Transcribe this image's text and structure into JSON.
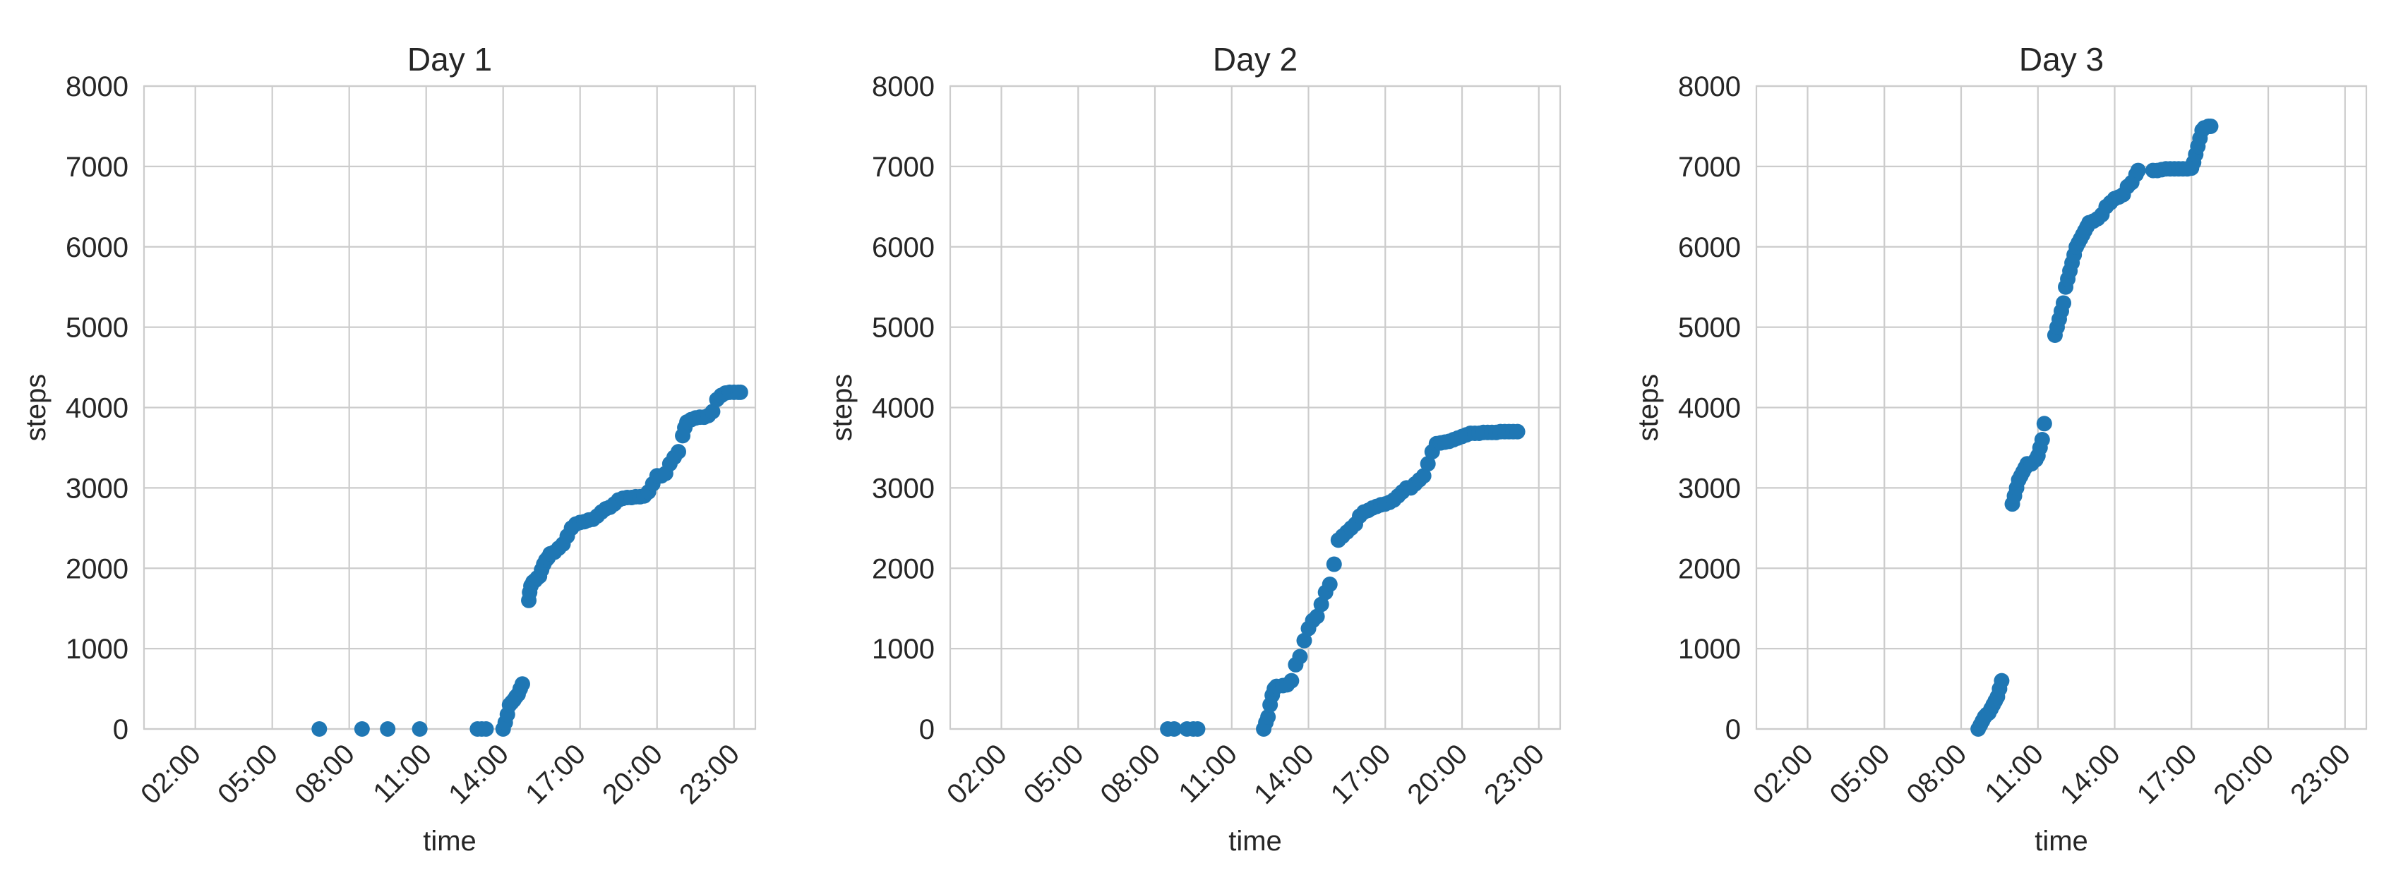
{
  "chart_data": [
    {
      "type": "scatter",
      "title": "Day 1",
      "xlabel": "time",
      "ylabel": "steps",
      "xlim": [
        "00:00",
        "23:50"
      ],
      "ylim": [
        0,
        8000
      ],
      "xticks": [
        "02:00",
        "05:00",
        "08:00",
        "11:00",
        "14:00",
        "17:00",
        "20:00",
        "23:00"
      ],
      "yticks": [
        0,
        1000,
        2000,
        3000,
        4000,
        5000,
        6000,
        7000,
        8000
      ],
      "grid": true,
      "color": "#1f77b4",
      "points": [
        [
          "06:50",
          0
        ],
        [
          "08:30",
          0
        ],
        [
          "09:30",
          0
        ],
        [
          "10:45",
          0
        ],
        [
          "13:00",
          0
        ],
        [
          "13:10",
          0
        ],
        [
          "13:20",
          0
        ],
        [
          "14:00",
          0
        ],
        [
          "14:05",
          80
        ],
        [
          "14:10",
          180
        ],
        [
          "14:15",
          300
        ],
        [
          "14:20",
          330
        ],
        [
          "14:25",
          360
        ],
        [
          "14:30",
          400
        ],
        [
          "14:35",
          430
        ],
        [
          "14:40",
          500
        ],
        [
          "14:45",
          560
        ],
        [
          "15:00",
          1600
        ],
        [
          "15:02",
          1700
        ],
        [
          "15:05",
          1780
        ],
        [
          "15:10",
          1830
        ],
        [
          "15:15",
          1850
        ],
        [
          "15:20",
          1880
        ],
        [
          "15:25",
          1900
        ],
        [
          "15:30",
          1980
        ],
        [
          "15:35",
          2050
        ],
        [
          "15:40",
          2100
        ],
        [
          "15:45",
          2130
        ],
        [
          "15:50",
          2180
        ],
        [
          "16:00",
          2200
        ],
        [
          "16:10",
          2250
        ],
        [
          "16:20",
          2300
        ],
        [
          "16:30",
          2400
        ],
        [
          "16:40",
          2500
        ],
        [
          "16:50",
          2550
        ],
        [
          "17:00",
          2570
        ],
        [
          "17:10",
          2580
        ],
        [
          "17:20",
          2600
        ],
        [
          "17:30",
          2610
        ],
        [
          "17:40",
          2650
        ],
        [
          "17:50",
          2700
        ],
        [
          "18:00",
          2740
        ],
        [
          "18:10",
          2760
        ],
        [
          "18:20",
          2800
        ],
        [
          "18:30",
          2850
        ],
        [
          "18:40",
          2870
        ],
        [
          "18:50",
          2880
        ],
        [
          "19:00",
          2880
        ],
        [
          "19:10",
          2890
        ],
        [
          "19:20",
          2890
        ],
        [
          "19:30",
          2900
        ],
        [
          "19:40",
          2950
        ],
        [
          "19:50",
          3050
        ],
        [
          "20:00",
          3150
        ],
        [
          "20:10",
          3150
        ],
        [
          "20:20",
          3180
        ],
        [
          "20:30",
          3300
        ],
        [
          "20:40",
          3380
        ],
        [
          "20:50",
          3450
        ],
        [
          "21:00",
          3650
        ],
        [
          "21:05",
          3750
        ],
        [
          "21:10",
          3820
        ],
        [
          "21:20",
          3850
        ],
        [
          "21:30",
          3870
        ],
        [
          "21:40",
          3880
        ],
        [
          "21:50",
          3880
        ],
        [
          "22:00",
          3900
        ],
        [
          "22:10",
          3950
        ],
        [
          "22:20",
          4100
        ],
        [
          "22:30",
          4150
        ],
        [
          "22:40",
          4180
        ],
        [
          "22:50",
          4190
        ],
        [
          "23:00",
          4190
        ],
        [
          "23:10",
          4190
        ],
        [
          "23:15",
          4190
        ]
      ]
    },
    {
      "type": "scatter",
      "title": "Day 2",
      "xlabel": "time",
      "ylabel": "steps",
      "xlim": [
        "00:00",
        "23:50"
      ],
      "ylim": [
        0,
        8000
      ],
      "xticks": [
        "02:00",
        "05:00",
        "08:00",
        "11:00",
        "14:00",
        "17:00",
        "20:00",
        "23:00"
      ],
      "yticks": [
        0,
        1000,
        2000,
        3000,
        4000,
        5000,
        6000,
        7000,
        8000
      ],
      "grid": true,
      "color": "#1f77b4",
      "points": [
        [
          "08:30",
          0
        ],
        [
          "08:45",
          0
        ],
        [
          "09:15",
          0
        ],
        [
          "09:30",
          0
        ],
        [
          "09:40",
          0
        ],
        [
          "12:15",
          0
        ],
        [
          "12:20",
          80
        ],
        [
          "12:25",
          150
        ],
        [
          "12:30",
          300
        ],
        [
          "12:35",
          420
        ],
        [
          "12:40",
          500
        ],
        [
          "12:45",
          530
        ],
        [
          "13:00",
          540
        ],
        [
          "13:10",
          550
        ],
        [
          "13:20",
          600
        ],
        [
          "13:30",
          800
        ],
        [
          "13:40",
          900
        ],
        [
          "13:50",
          1100
        ],
        [
          "14:00",
          1250
        ],
        [
          "14:10",
          1350
        ],
        [
          "14:20",
          1400
        ],
        [
          "14:30",
          1550
        ],
        [
          "14:40",
          1700
        ],
        [
          "14:50",
          1800
        ],
        [
          "15:00",
          2050
        ],
        [
          "15:10",
          2350
        ],
        [
          "15:20",
          2400
        ],
        [
          "15:30",
          2450
        ],
        [
          "15:40",
          2500
        ],
        [
          "15:50",
          2550
        ],
        [
          "16:00",
          2650
        ],
        [
          "16:10",
          2700
        ],
        [
          "16:20",
          2720
        ],
        [
          "16:30",
          2750
        ],
        [
          "16:40",
          2770
        ],
        [
          "16:50",
          2790
        ],
        [
          "17:00",
          2800
        ],
        [
          "17:10",
          2820
        ],
        [
          "17:20",
          2850
        ],
        [
          "17:30",
          2900
        ],
        [
          "17:40",
          2950
        ],
        [
          "17:50",
          3000
        ],
        [
          "18:00",
          3000
        ],
        [
          "18:10",
          3050
        ],
        [
          "18:20",
          3100
        ],
        [
          "18:30",
          3150
        ],
        [
          "18:40",
          3300
        ],
        [
          "18:50",
          3450
        ],
        [
          "19:00",
          3550
        ],
        [
          "19:10",
          3560
        ],
        [
          "19:20",
          3570
        ],
        [
          "19:30",
          3580
        ],
        [
          "19:40",
          3600
        ],
        [
          "19:50",
          3620
        ],
        [
          "20:00",
          3640
        ],
        [
          "20:10",
          3660
        ],
        [
          "20:20",
          3680
        ],
        [
          "20:30",
          3680
        ],
        [
          "20:40",
          3680
        ],
        [
          "20:50",
          3690
        ],
        [
          "21:00",
          3690
        ],
        [
          "21:10",
          3690
        ],
        [
          "21:20",
          3690
        ],
        [
          "21:30",
          3700
        ],
        [
          "21:40",
          3700
        ],
        [
          "21:50",
          3700
        ],
        [
          "22:00",
          3700
        ],
        [
          "22:10",
          3700
        ]
      ]
    },
    {
      "type": "scatter",
      "title": "Day 3",
      "xlabel": "time",
      "ylabel": "steps",
      "xlim": [
        "00:00",
        "23:50"
      ],
      "ylim": [
        0,
        8000
      ],
      "xticks": [
        "02:00",
        "05:00",
        "08:00",
        "11:00",
        "14:00",
        "17:00",
        "20:00",
        "23:00"
      ],
      "yticks": [
        0,
        1000,
        2000,
        3000,
        4000,
        5000,
        6000,
        7000,
        8000
      ],
      "grid": true,
      "color": "#1f77b4",
      "points": [
        [
          "08:40",
          0
        ],
        [
          "08:45",
          50
        ],
        [
          "08:50",
          100
        ],
        [
          "08:55",
          150
        ],
        [
          "09:00",
          180
        ],
        [
          "09:05",
          200
        ],
        [
          "09:10",
          250
        ],
        [
          "09:15",
          300
        ],
        [
          "09:20",
          350
        ],
        [
          "09:25",
          400
        ],
        [
          "09:30",
          500
        ],
        [
          "09:35",
          600
        ],
        [
          "10:00",
          2800
        ],
        [
          "10:05",
          2900
        ],
        [
          "10:10",
          3000
        ],
        [
          "10:15",
          3100
        ],
        [
          "10:20",
          3150
        ],
        [
          "10:25",
          3200
        ],
        [
          "10:30",
          3250
        ],
        [
          "10:35",
          3300
        ],
        [
          "10:45",
          3300
        ],
        [
          "10:55",
          3350
        ],
        [
          "11:00",
          3400
        ],
        [
          "11:05",
          3500
        ],
        [
          "11:10",
          3600
        ],
        [
          "11:15",
          3800
        ],
        [
          "11:40",
          4900
        ],
        [
          "11:45",
          5000
        ],
        [
          "11:50",
          5100
        ],
        [
          "11:55",
          5200
        ],
        [
          "12:00",
          5300
        ],
        [
          "12:05",
          5500
        ],
        [
          "12:10",
          5600
        ],
        [
          "12:15",
          5700
        ],
        [
          "12:20",
          5800
        ],
        [
          "12:25",
          5900
        ],
        [
          "12:30",
          6000
        ],
        [
          "12:35",
          6050
        ],
        [
          "12:40",
          6100
        ],
        [
          "12:45",
          6150
        ],
        [
          "12:50",
          6200
        ],
        [
          "12:55",
          6250
        ],
        [
          "13:00",
          6300
        ],
        [
          "13:10",
          6320
        ],
        [
          "13:20",
          6350
        ],
        [
          "13:30",
          6400
        ],
        [
          "13:40",
          6500
        ],
        [
          "13:50",
          6550
        ],
        [
          "14:00",
          6600
        ],
        [
          "14:10",
          6620
        ],
        [
          "14:20",
          6650
        ],
        [
          "14:30",
          6750
        ],
        [
          "14:40",
          6800
        ],
        [
          "14:50",
          6900
        ],
        [
          "14:55",
          6950
        ],
        [
          "15:30",
          6950
        ],
        [
          "15:40",
          6950
        ],
        [
          "15:50",
          6960
        ],
        [
          "16:00",
          6970
        ],
        [
          "16:10",
          6970
        ],
        [
          "16:20",
          6970
        ],
        [
          "16:30",
          6970
        ],
        [
          "16:40",
          6970
        ],
        [
          "16:50",
          6970
        ],
        [
          "17:00",
          6980
        ],
        [
          "17:05",
          7050
        ],
        [
          "17:10",
          7150
        ],
        [
          "17:15",
          7250
        ],
        [
          "17:20",
          7350
        ],
        [
          "17:25",
          7450
        ],
        [
          "17:30",
          7480
        ],
        [
          "17:40",
          7500
        ],
        [
          "17:45",
          7500
        ]
      ]
    }
  ]
}
